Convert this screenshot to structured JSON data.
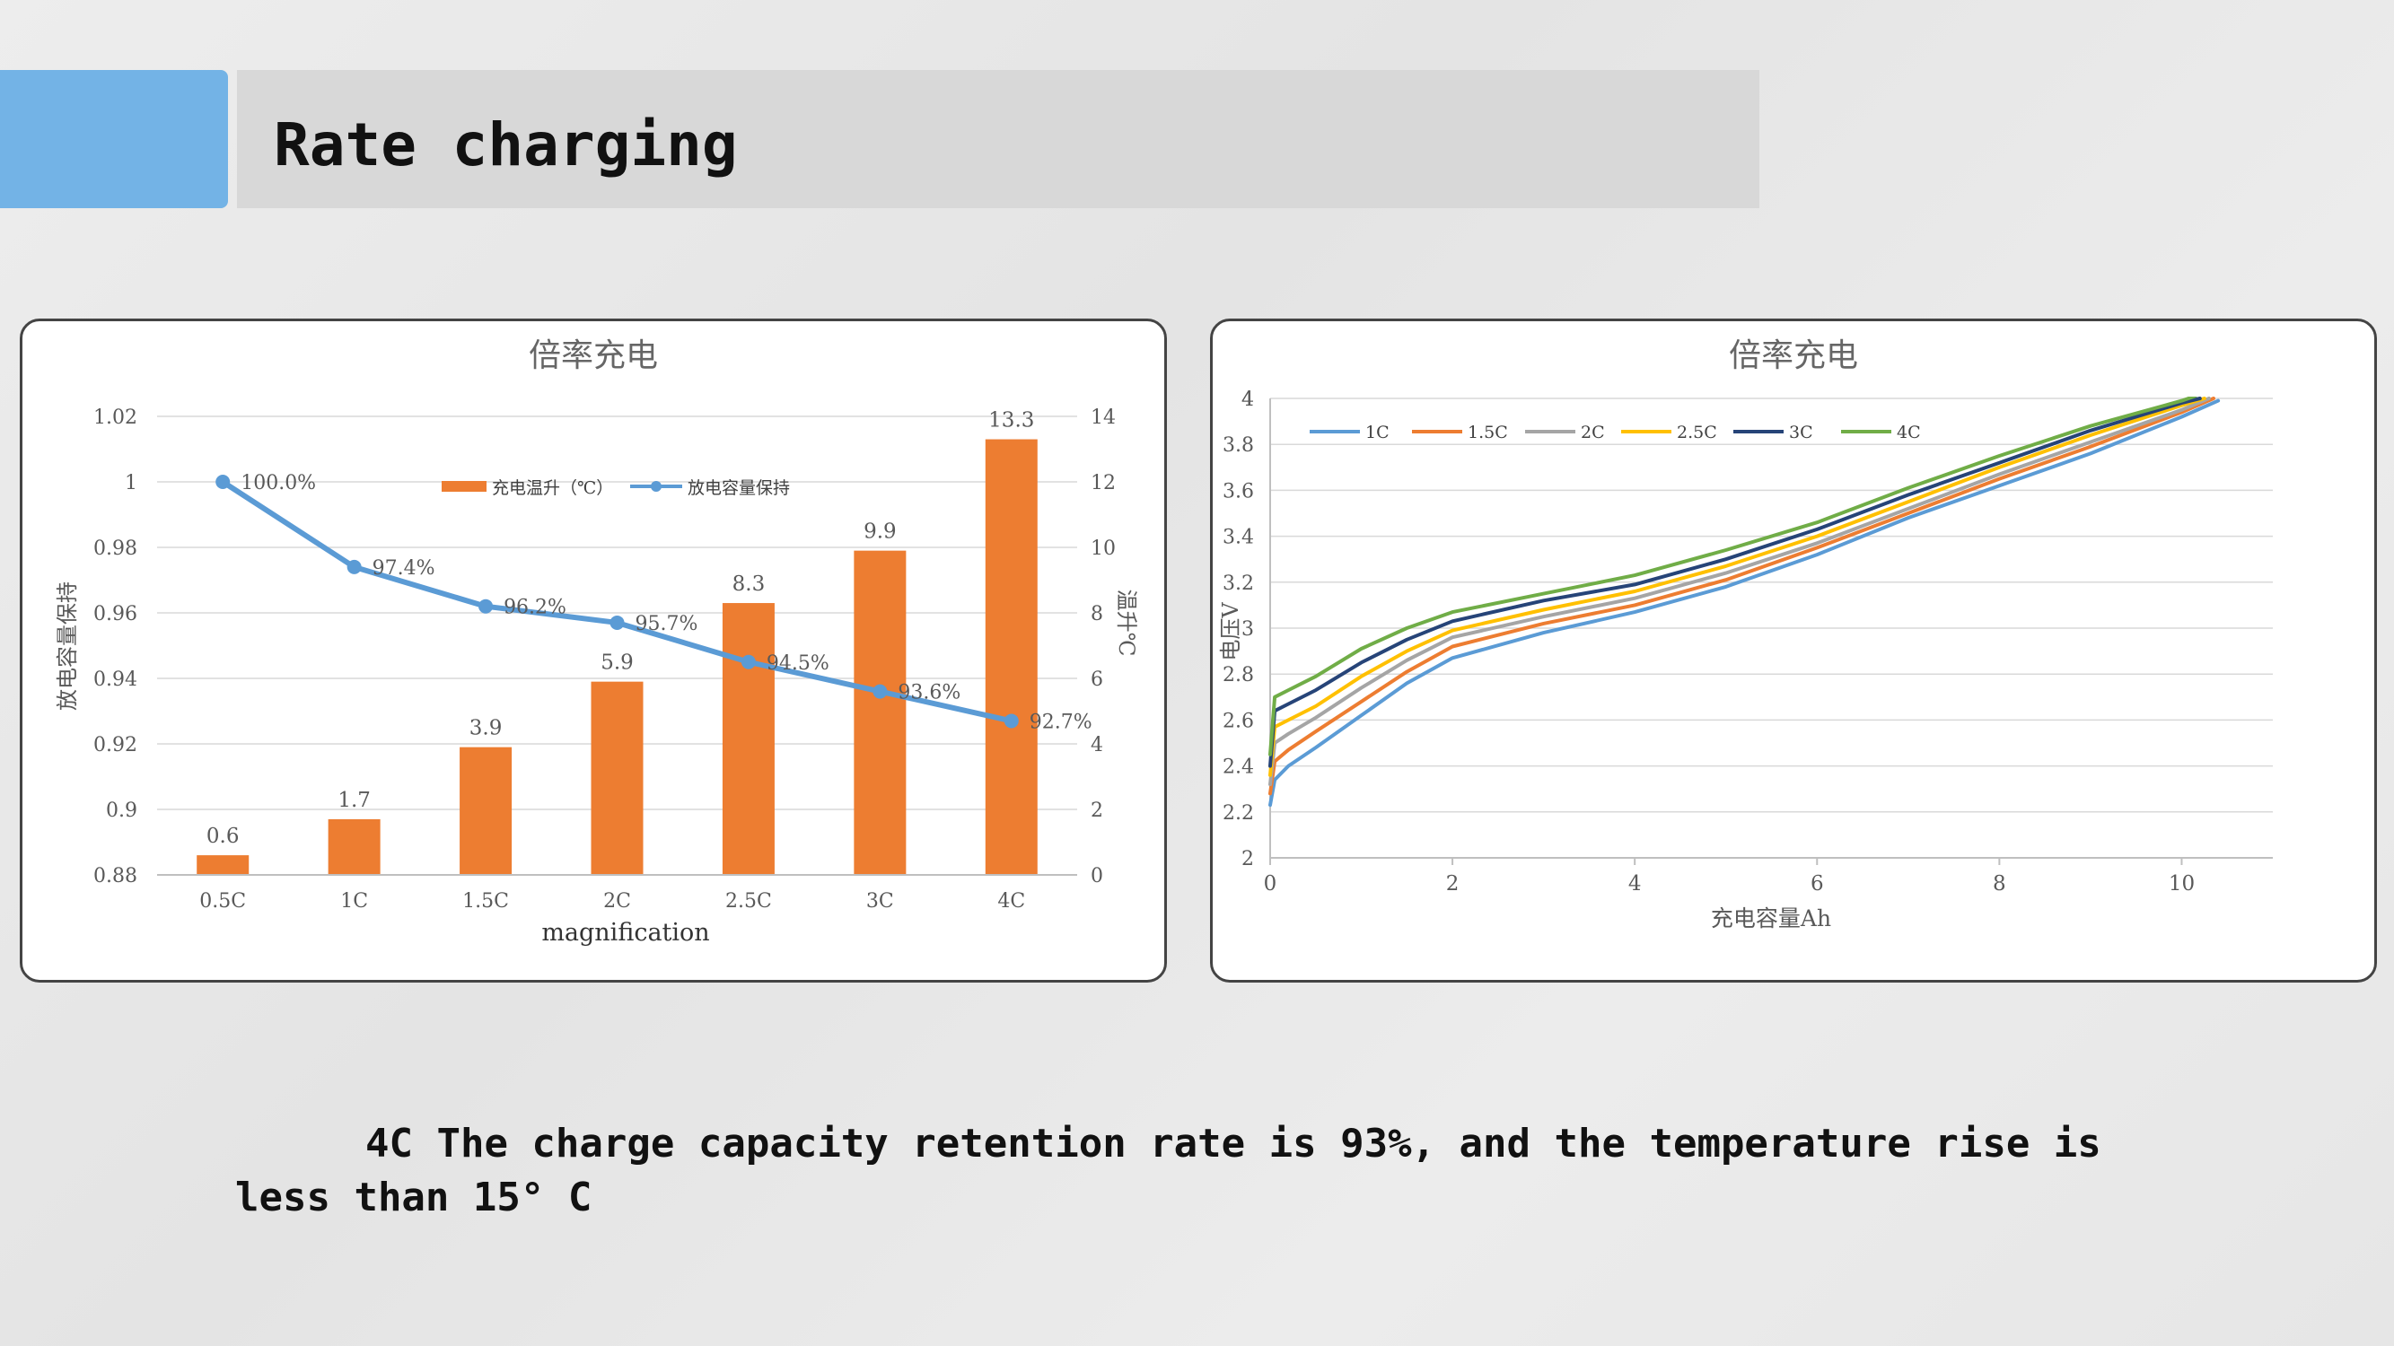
{
  "slide": {
    "title": "Rate charging",
    "caption_line1": "4C The charge capacity retention rate is 93%, and the temperature rise is",
    "caption_line2": "less than 15° C",
    "accent_color": "#73b3e6",
    "title_bar_color": "#d8d8d8"
  },
  "chart_data": [
    {
      "type": "bar",
      "title": "倍率充电",
      "xlabel": "magnification",
      "ylabel_left": "放电容量保持",
      "ylabel_right": "温升℃",
      "categories": [
        "0.5C",
        "1C",
        "1.5C",
        "2C",
        "2.5C",
        "3C",
        "4C"
      ],
      "y_left_lim": [
        0.88,
        1.02
      ],
      "y_left_ticks": [
        "0.88",
        "0.9",
        "0.92",
        "0.94",
        "0.96",
        "0.98",
        "1",
        "1.02"
      ],
      "y_right_lim": [
        0,
        14
      ],
      "y_right_ticks": [
        "0",
        "2",
        "4",
        "6",
        "8",
        "10",
        "12",
        "14"
      ],
      "legend_position": "top-center",
      "series": [
        {
          "name": "充电温升（℃）",
          "type": "bar",
          "axis": "right",
          "color": "#ed7d31",
          "values": [
            0.6,
            1.7,
            3.9,
            5.9,
            8.3,
            9.9,
            13.3
          ],
          "labels": [
            "0.6",
            "1.7",
            "3.9",
            "5.9",
            "8.3",
            "9.9",
            "13.3"
          ]
        },
        {
          "name": "放电容量保持",
          "type": "line",
          "axis": "left",
          "color": "#5b9bd5",
          "values": [
            1.0,
            0.974,
            0.962,
            0.957,
            0.945,
            0.936,
            0.927
          ],
          "labels": [
            "100.0%",
            "97.4%",
            "96.2%",
            "95.7%",
            "94.5%",
            "93.6%",
            "92.7%"
          ]
        }
      ]
    },
    {
      "type": "line",
      "title": "倍率充电",
      "xlabel": "充电容量Ah",
      "ylabel": "电压V",
      "xlim": [
        0,
        11
      ],
      "ylim": [
        2,
        4
      ],
      "x_ticks": [
        "0",
        "2",
        "4",
        "6",
        "8",
        "10"
      ],
      "y_ticks": [
        "2",
        "2.2",
        "2.4",
        "2.6",
        "2.8",
        "3",
        "3.2",
        "3.4",
        "3.6",
        "3.8",
        "4"
      ],
      "legend_position": "top-left",
      "series": [
        {
          "name": "1C",
          "color": "#5b9bd5",
          "x": [
            0,
            0.05,
            0.2,
            0.5,
            1,
            1.5,
            2,
            3,
            4,
            5,
            6,
            7,
            8,
            9,
            10,
            10.4
          ],
          "y": [
            2.23,
            2.34,
            2.4,
            2.48,
            2.62,
            2.76,
            2.87,
            2.98,
            3.07,
            3.18,
            3.32,
            3.48,
            3.62,
            3.76,
            3.92,
            3.99
          ]
        },
        {
          "name": "1.5C",
          "color": "#ed7d31",
          "x": [
            0,
            0.05,
            0.2,
            0.5,
            1,
            1.5,
            2,
            3,
            4,
            5,
            6,
            7,
            8,
            9,
            10,
            10.35
          ],
          "y": [
            2.28,
            2.42,
            2.47,
            2.55,
            2.68,
            2.81,
            2.92,
            3.02,
            3.1,
            3.21,
            3.35,
            3.5,
            3.65,
            3.79,
            3.94,
            4.0
          ]
        },
        {
          "name": "2C",
          "color": "#a5a5a5",
          "x": [
            0,
            0.05,
            0.2,
            0.5,
            1,
            1.5,
            2,
            3,
            4,
            5,
            6,
            7,
            8,
            9,
            10,
            10.3
          ],
          "y": [
            2.32,
            2.5,
            2.54,
            2.61,
            2.74,
            2.86,
            2.96,
            3.05,
            3.13,
            3.24,
            3.37,
            3.52,
            3.67,
            3.81,
            3.95,
            4.0
          ]
        },
        {
          "name": "2.5C",
          "color": "#ffc000",
          "x": [
            0,
            0.05,
            0.2,
            0.5,
            1,
            1.5,
            2,
            3,
            4,
            5,
            6,
            7,
            8,
            9,
            10,
            10.25
          ],
          "y": [
            2.36,
            2.57,
            2.6,
            2.66,
            2.79,
            2.9,
            2.99,
            3.08,
            3.16,
            3.27,
            3.4,
            3.55,
            3.7,
            3.84,
            3.97,
            4.0
          ]
        },
        {
          "name": "3C",
          "color": "#264478",
          "x": [
            0,
            0.05,
            0.2,
            0.5,
            1,
            1.5,
            2,
            3,
            4,
            5,
            6,
            7,
            8,
            9,
            10,
            10.2
          ],
          "y": [
            2.4,
            2.64,
            2.67,
            2.73,
            2.85,
            2.95,
            3.03,
            3.12,
            3.19,
            3.3,
            3.43,
            3.58,
            3.72,
            3.86,
            3.98,
            4.0
          ]
        },
        {
          "name": "4C",
          "color": "#70ad47",
          "x": [
            0,
            0.05,
            0.2,
            0.5,
            1,
            1.5,
            2,
            3,
            4,
            5,
            6,
            7,
            8,
            9,
            10,
            10.15
          ],
          "y": [
            2.45,
            2.7,
            2.73,
            2.79,
            2.91,
            3.0,
            3.07,
            3.15,
            3.23,
            3.34,
            3.46,
            3.61,
            3.75,
            3.88,
            3.99,
            4.01
          ]
        }
      ]
    }
  ]
}
